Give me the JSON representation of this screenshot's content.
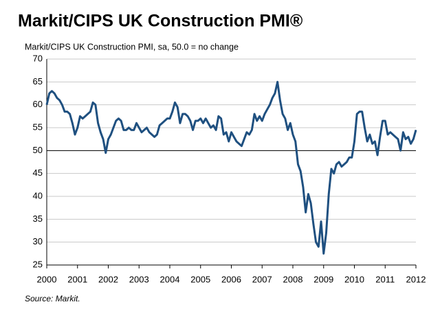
{
  "chart_data": {
    "type": "line",
    "title": "Markit/CIPS UK Construction PMI®",
    "subtitle": "Markit/CIPS UK Construction PMI, sa, 50.0 = no change",
    "source": "Source: Markit.",
    "categories": [
      "2000",
      null,
      null,
      null,
      null,
      null,
      null,
      null,
      null,
      null,
      null,
      null,
      "2001",
      null,
      null,
      null,
      null,
      null,
      null,
      null,
      null,
      null,
      null,
      null,
      "2002",
      null,
      null,
      null,
      null,
      null,
      null,
      null,
      null,
      null,
      null,
      null,
      "2003",
      null,
      null,
      null,
      null,
      null,
      null,
      null,
      null,
      null,
      null,
      null,
      "2004",
      null,
      null,
      null,
      null,
      null,
      null,
      null,
      null,
      null,
      null,
      null,
      "2005",
      null,
      null,
      null,
      null,
      null,
      null,
      null,
      null,
      null,
      null,
      null,
      "2006",
      null,
      null,
      null,
      null,
      null,
      null,
      null,
      null,
      null,
      null,
      null,
      "2007",
      null,
      null,
      null,
      null,
      null,
      null,
      null,
      null,
      null,
      null,
      null,
      "2008",
      null,
      null,
      null,
      null,
      null,
      null,
      null,
      null,
      null,
      null,
      null,
      "2009",
      null,
      null,
      null,
      null,
      null,
      null,
      null,
      null,
      null,
      null,
      null,
      "2010",
      null,
      null,
      null,
      null,
      null,
      null,
      null,
      null,
      null,
      null,
      null,
      "2011",
      null,
      null,
      null,
      null,
      null,
      null,
      null,
      null,
      null,
      null,
      null,
      "2012"
    ],
    "series": [
      {
        "name": "Markit/CIPS UK Construction PMI",
        "color": "#1f5080",
        "values": [
          60,
          62.5,
          63,
          62.5,
          61.5,
          61,
          60,
          58.5,
          58.5,
          58,
          56,
          53.5,
          55,
          57.5,
          57,
          57.5,
          58,
          58.5,
          60.5,
          60,
          56,
          54,
          52.5,
          49.5,
          52.5,
          53.5,
          55,
          56.5,
          57,
          56.5,
          54.5,
          54.5,
          55,
          54.5,
          54.5,
          56,
          55,
          54,
          54.5,
          55,
          54,
          53.5,
          53,
          53.5,
          55.5,
          56,
          56.5,
          57,
          57,
          58.5,
          60.5,
          59.5,
          56,
          58,
          58,
          57.5,
          56.5,
          54.5,
          56.5,
          56.5,
          57,
          56,
          57,
          56,
          55,
          55.5,
          54.5,
          57.5,
          57,
          53.5,
          54,
          52,
          54,
          53,
          52,
          51.5,
          51,
          52.5,
          54,
          53.5,
          54.5,
          58,
          56.5,
          57.5,
          56.5,
          58,
          59,
          60,
          61.5,
          62.5,
          65,
          61,
          58,
          57,
          54.5,
          56,
          53.5,
          52,
          47,
          45.5,
          42,
          36.5,
          40.5,
          38.5,
          34,
          30,
          29,
          34.5,
          27.5,
          32,
          40.5,
          46,
          45,
          47,
          47.5,
          46.5,
          47,
          47.5,
          48.5,
          48.5,
          52,
          58,
          58.5,
          58.5,
          55,
          52,
          53.5,
          51.5,
          52,
          49,
          53,
          56.5,
          56.5,
          53.5,
          54,
          53.5,
          53,
          52.5,
          50,
          54,
          52.5,
          53,
          51.5,
          52.5,
          54.5
        ]
      }
    ],
    "ylim": [
      25,
      70
    ],
    "yticks": [
      25,
      30,
      35,
      40,
      45,
      50,
      55,
      60,
      65,
      70
    ],
    "grid": true,
    "reference_line": 50
  }
}
